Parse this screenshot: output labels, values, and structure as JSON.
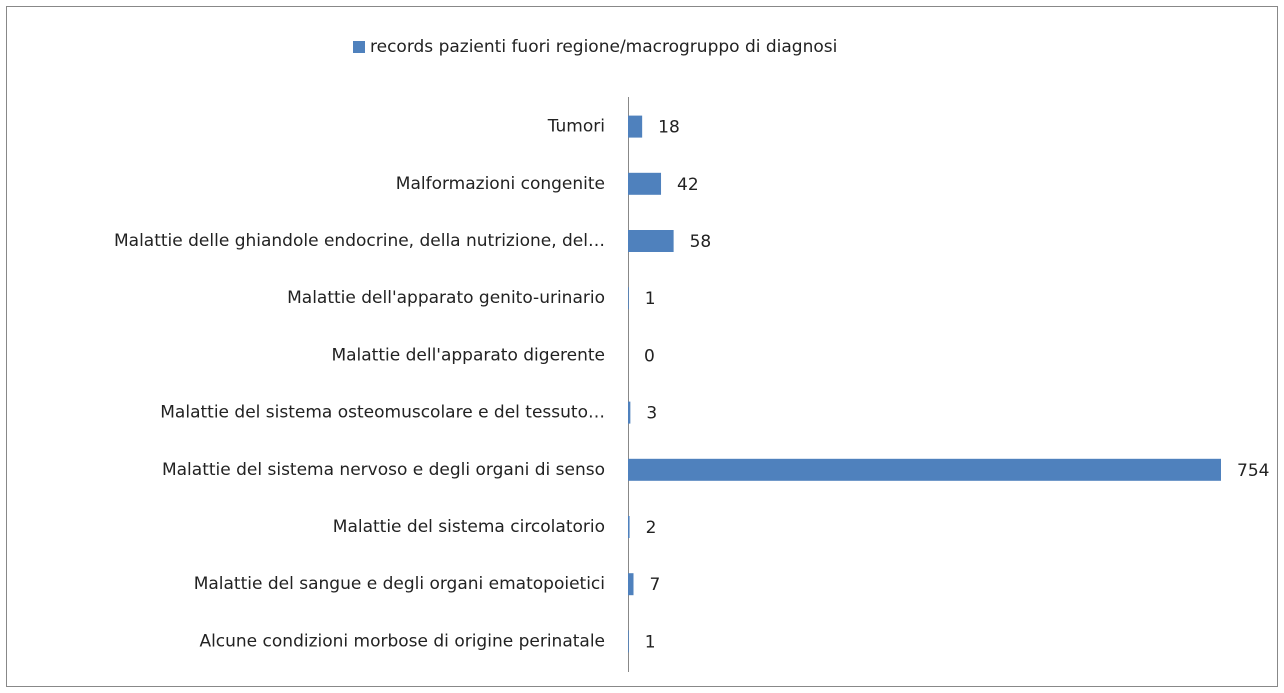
{
  "chart_data": {
    "type": "bar",
    "orientation": "horizontal",
    "categories": [
      "Tumori",
      "Malformazioni congenite",
      "Malattie delle ghiandole endocrine, della nutrizione, del…",
      "Malattie dell'apparato genito-urinario",
      "Malattie dell'apparato digerente",
      "Malattie del sistema osteomuscolare e del tessuto…",
      "Malattie del sistema nervoso e degli organi di senso",
      "Malattie del sistema circolatorio",
      "Malattie del sangue e degli organi ematopoietici",
      "Alcune condizioni morbose di origine perinatale"
    ],
    "series": [
      {
        "name": "records pazienti fuori regione/macrogruppo di diagnosi",
        "color": "#4f81bd",
        "values": [
          18,
          42,
          58,
          1,
          0,
          3,
          754,
          2,
          7,
          1
        ]
      }
    ],
    "legend": "top"
  }
}
